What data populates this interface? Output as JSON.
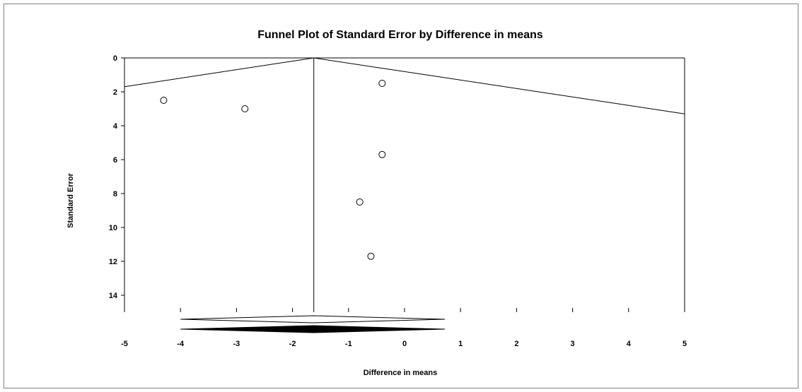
{
  "chart_data": {
    "type": "scatter",
    "title": "Funnel Plot of Standard Error by Difference in means",
    "xlabel": "Difference in means",
    "ylabel": "Standard Error",
    "xlim": [
      -5,
      5
    ],
    "ylim": [
      0,
      15
    ],
    "y_inverted": true,
    "x_ticks": [
      -5,
      -4,
      -3,
      -2,
      -1,
      0,
      1,
      2,
      3,
      4,
      5
    ],
    "y_ticks": [
      0,
      2,
      4,
      6,
      8,
      10,
      12,
      14
    ],
    "grid": false,
    "legend": "none",
    "points": [
      {
        "x": -4.3,
        "y": 2.5
      },
      {
        "x": -2.85,
        "y": 3.0
      },
      {
        "x": -0.4,
        "y": 1.5
      },
      {
        "x": -0.4,
        "y": 5.7
      },
      {
        "x": -0.8,
        "y": 8.5
      },
      {
        "x": -0.6,
        "y": 11.7
      }
    ],
    "pooled_estimate": -1.62,
    "funnel": {
      "apex": [
        -1.62,
        0
      ],
      "left_edge_y": 1.7,
      "right_edge_y": 3.3
    },
    "diamonds": [
      {
        "center": -1.62,
        "low": -4.0,
        "high": 0.72,
        "fill": "#ffffff"
      },
      {
        "center": -1.62,
        "low": -4.0,
        "high": 0.72,
        "fill": "#000000"
      }
    ]
  }
}
